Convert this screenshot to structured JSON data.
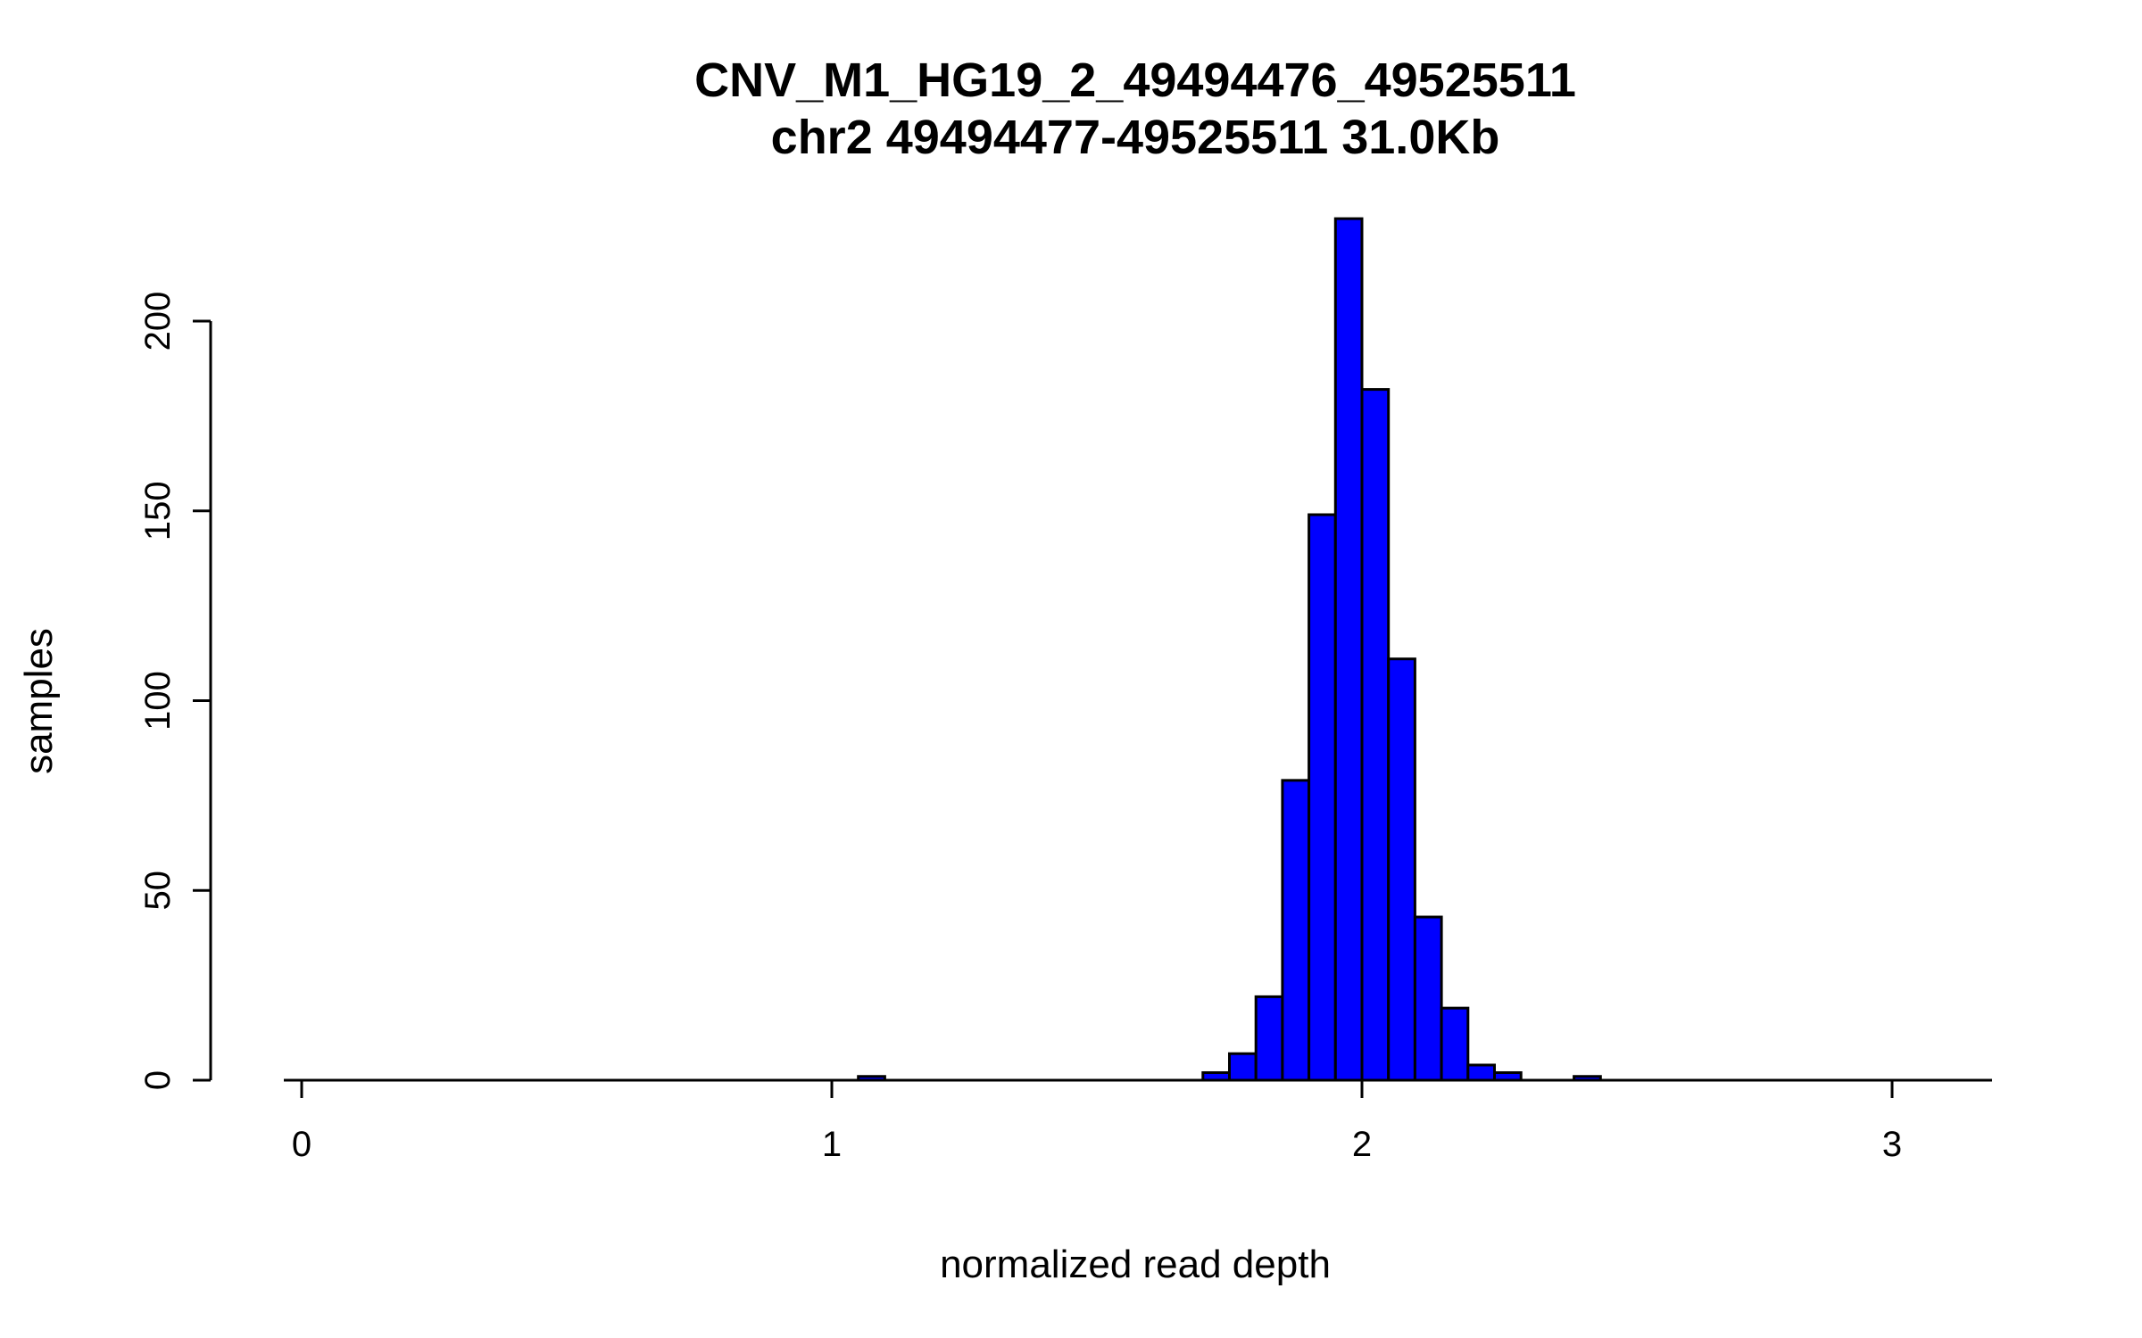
{
  "window": {
    "title": "CNV_M1_HG19_2_49494476_49525511"
  },
  "chart_data": {
    "type": "bar",
    "subtype": "histogram",
    "title": "CNV_M1_HG19_2_49494476_49525511",
    "subtitle": "chr2 49494477-49525511 31.0Kb",
    "xlabel": "normalized read depth",
    "ylabel": "samples",
    "xlim": [
      0,
      3.2
    ],
    "ylim": [
      0,
      200
    ],
    "x_ticks": [
      0,
      1,
      2,
      3
    ],
    "y_ticks": [
      0,
      50,
      100,
      150,
      200
    ],
    "grid": false,
    "legend": "none",
    "bin_width": 0.05,
    "bar_color": "#0000FF",
    "bar_border_color": "#000000",
    "bins": [
      {
        "x0": 1.05,
        "count": 1
      },
      {
        "x0": 1.7,
        "count": 2
      },
      {
        "x0": 1.75,
        "count": 7
      },
      {
        "x0": 1.8,
        "count": 22
      },
      {
        "x0": 1.85,
        "count": 79
      },
      {
        "x0": 1.9,
        "count": 149
      },
      {
        "x0": 1.95,
        "count": 227
      },
      {
        "x0": 2.0,
        "count": 182
      },
      {
        "x0": 2.05,
        "count": 111
      },
      {
        "x0": 2.1,
        "count": 43
      },
      {
        "x0": 2.15,
        "count": 19
      },
      {
        "x0": 2.2,
        "count": 4
      },
      {
        "x0": 2.25,
        "count": 2
      },
      {
        "x0": 2.4,
        "count": 1
      }
    ]
  }
}
